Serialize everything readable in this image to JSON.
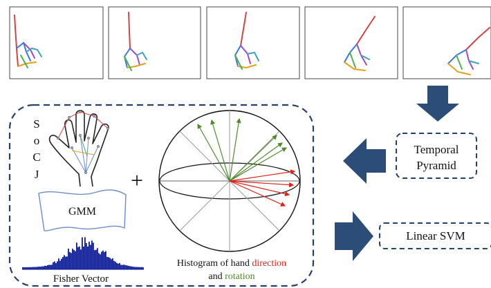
{
  "frames": [
    {
      "skeleton": "hand-skeleton-frame-1"
    },
    {
      "skeleton": "hand-skeleton-frame-2"
    },
    {
      "skeleton": "hand-skeleton-frame-3"
    },
    {
      "skeleton": "hand-skeleton-frame-4"
    },
    {
      "skeleton": "hand-skeleton-frame-5"
    }
  ],
  "feature_letters": [
    "S",
    "o",
    "C",
    "J"
  ],
  "plus_sign": "+",
  "gmm_label": "GMM",
  "fisher_label": "Fisher Vector",
  "histogram_caption": {
    "line1_prefix": "Histogram of hand ",
    "line1_highlight": "direction",
    "line2_prefix": "and ",
    "line2_highlight": "rotation"
  },
  "temporal_pyramid": {
    "line1": "Temporal",
    "line2": "Pyramid"
  },
  "linear_svm": "Linear SVM",
  "colors": {
    "arrow": "#2b4d78",
    "border": "#24406a",
    "direction": "#e0211a",
    "rotation": "#4f8a2c"
  }
}
